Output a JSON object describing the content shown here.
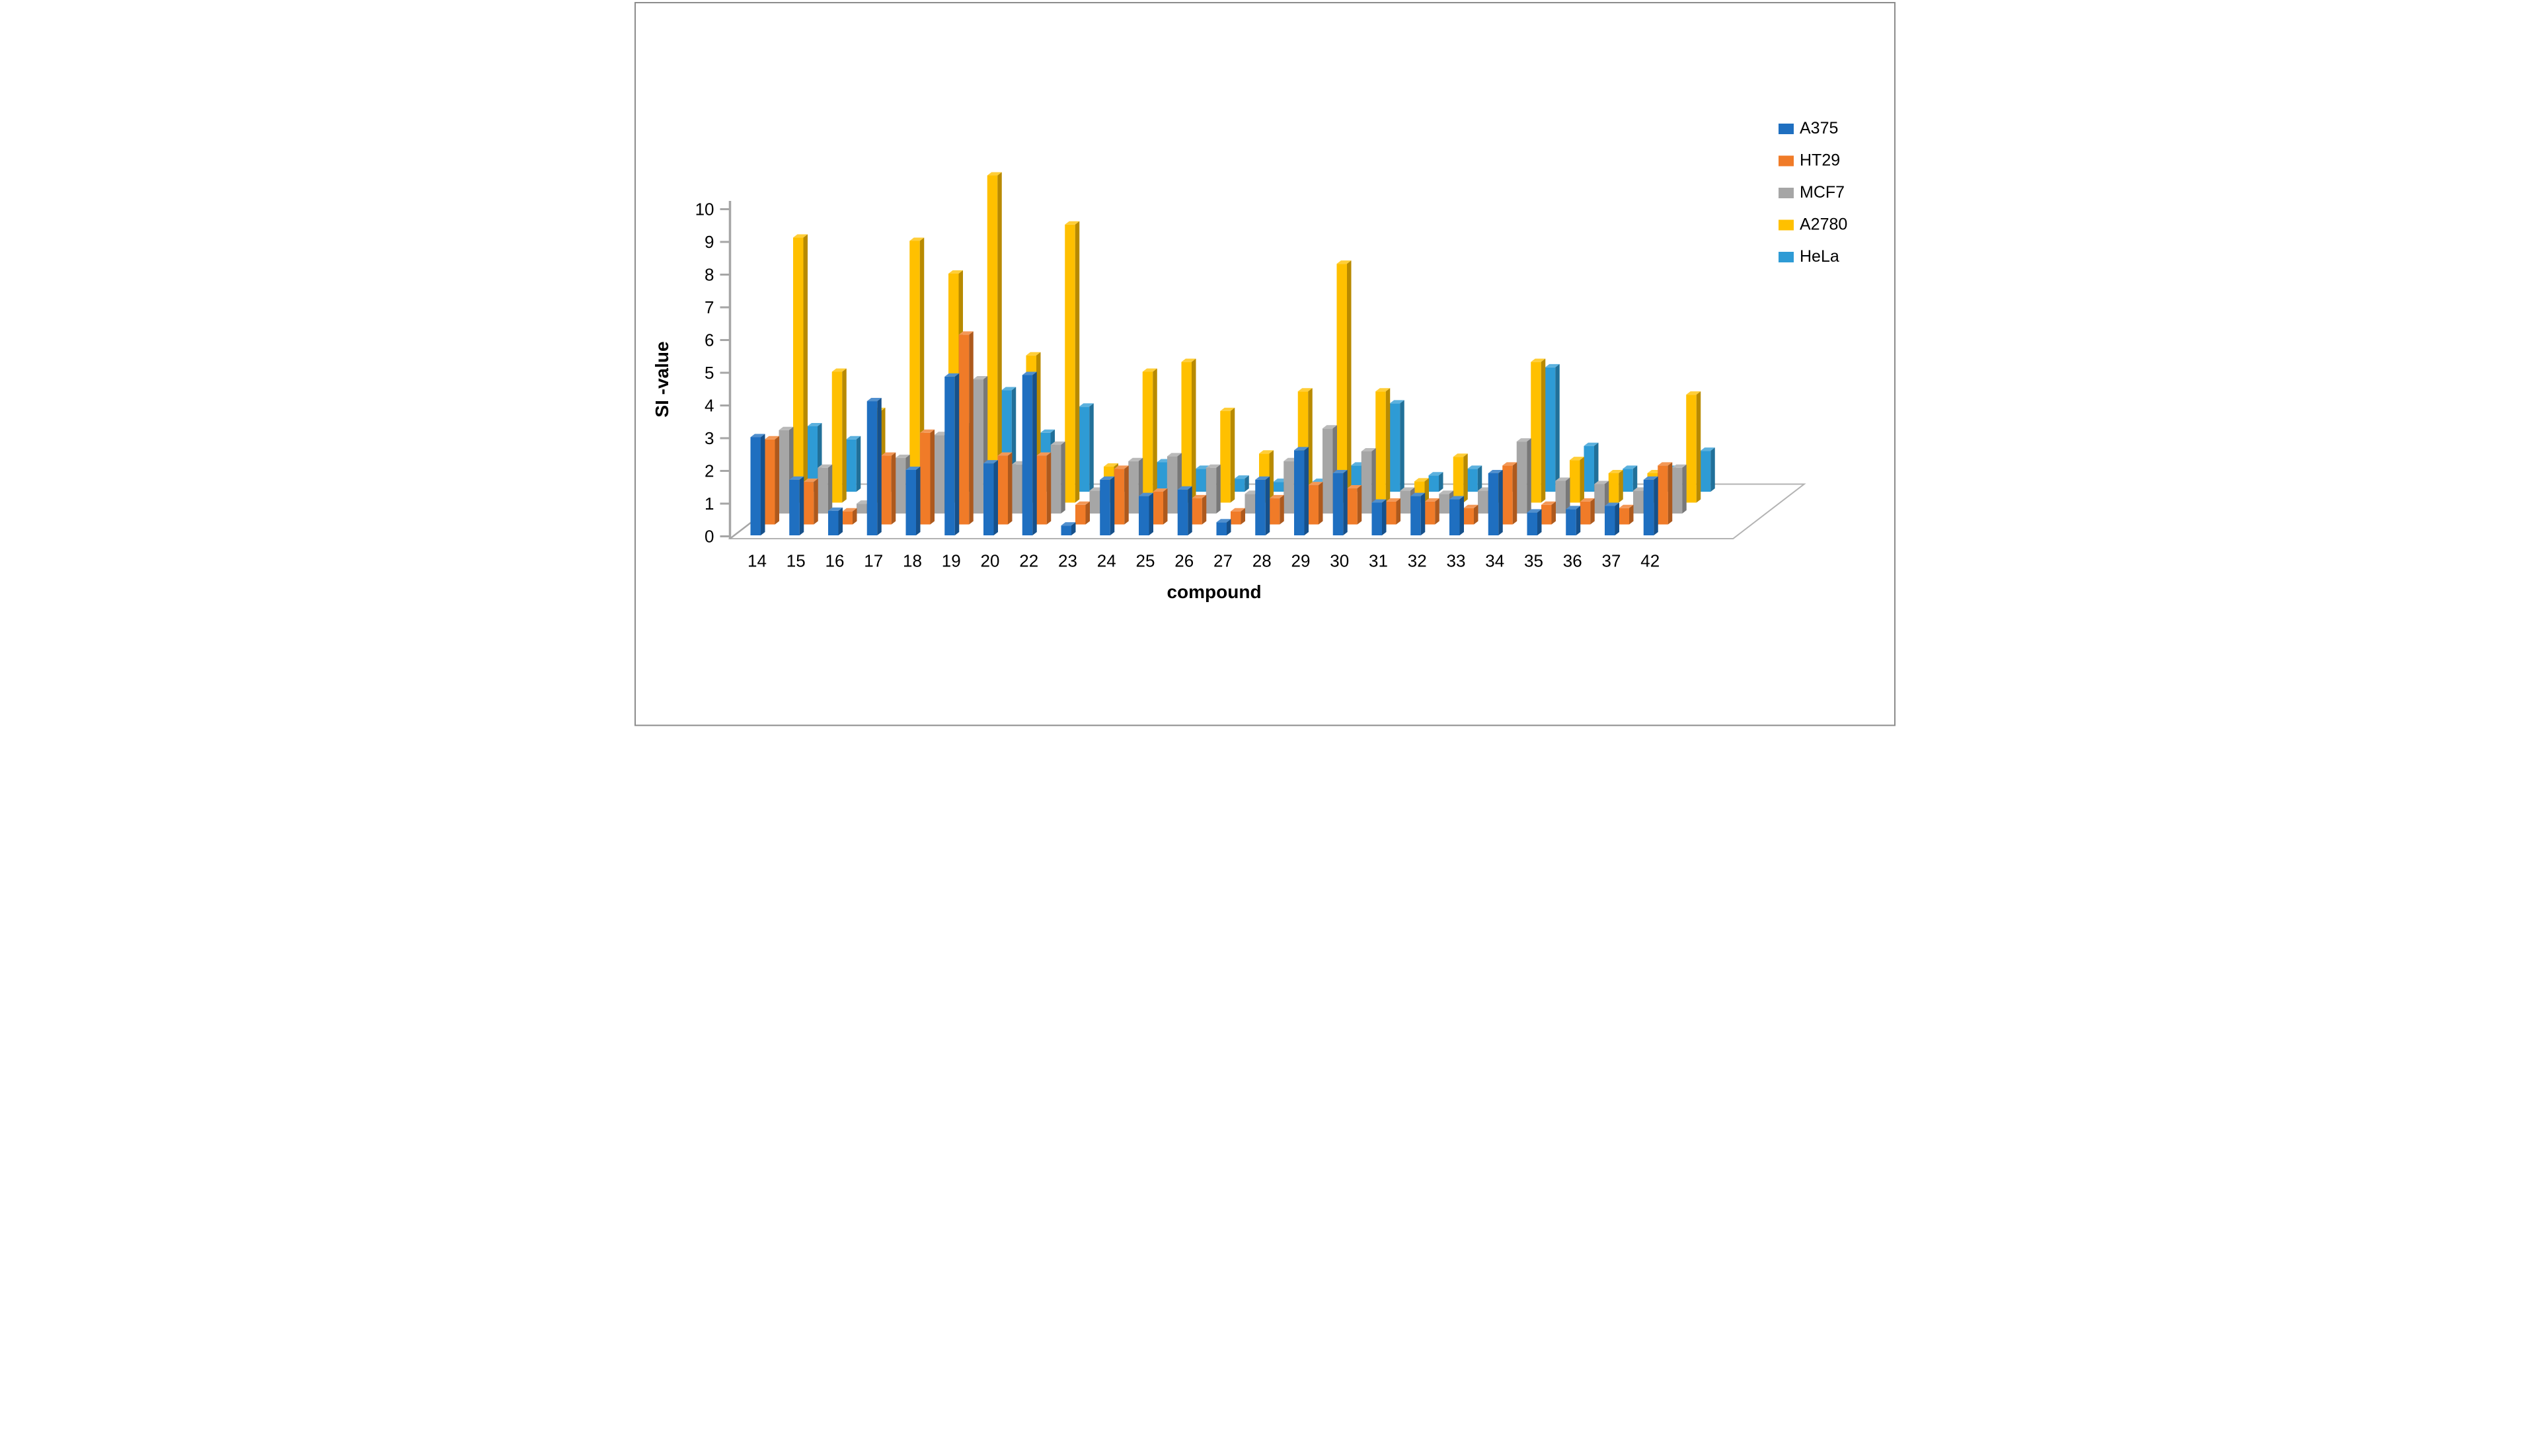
{
  "chart_data": {
    "type": "bar",
    "variant": "3d-column",
    "title": "",
    "xlabel": "compound",
    "ylabel": "SI -value",
    "ylim": [
      0,
      10
    ],
    "yticks": [
      "0",
      "1",
      "2",
      "3",
      "4",
      "5",
      "6",
      "7",
      "8",
      "9",
      "10"
    ],
    "grid": false,
    "legend_position": "right",
    "categories": [
      "14",
      "15",
      "16",
      "17",
      "18",
      "19",
      "20",
      "22",
      "23",
      "24",
      "25",
      "26",
      "27",
      "28",
      "29",
      "30",
      "31",
      "32",
      "33",
      "34",
      "35",
      "36",
      "37",
      "42"
    ],
    "series": [
      {
        "name": "A375",
        "color": "#1f6fc0",
        "values": [
          3.0,
          1.7,
          0.75,
          4.1,
          2.0,
          4.85,
          2.2,
          4.9,
          0.3,
          1.7,
          1.2,
          1.4,
          0.4,
          1.7,
          2.6,
          1.9,
          1.0,
          1.2,
          1.1,
          1.9,
          0.7,
          0.8,
          0.9,
          1.7
        ]
      },
      {
        "name": "HT29",
        "color": "#f07b28",
        "values": [
          2.6,
          1.3,
          0.4,
          2.1,
          2.8,
          5.8,
          2.1,
          2.1,
          0.6,
          1.7,
          1.0,
          0.8,
          0.4,
          0.8,
          1.2,
          1.1,
          0.7,
          0.7,
          0.5,
          1.8,
          0.6,
          0.7,
          0.5,
          1.8
        ]
      },
      {
        "name": "MCF7",
        "color": "#a6a6a6",
        "values": [
          2.55,
          1.4,
          0.3,
          1.7,
          2.4,
          4.1,
          1.5,
          2.1,
          0.7,
          1.6,
          1.75,
          1.4,
          0.6,
          1.6,
          2.6,
          1.9,
          0.7,
          0.6,
          0.7,
          2.2,
          1.0,
          0.9,
          0.7,
          1.4
        ]
      },
      {
        "name": "A2780",
        "color": "#ffc000",
        "values": [
          8.1,
          4.0,
          2.8,
          8.0,
          7.0,
          10.0,
          4.5,
          8.5,
          1.1,
          4.0,
          4.3,
          2.8,
          1.5,
          3.4,
          7.3,
          3.4,
          0.65,
          1.4,
          0.9,
          4.3,
          1.3,
          0.9,
          0.9,
          3.3
        ]
      },
      {
        "name": "HeLa",
        "color": "#2e9bd5",
        "values": [
          2.0,
          1.6,
          0.9,
          1.5,
          2.0,
          3.1,
          1.8,
          2.6,
          0.6,
          0.9,
          0.7,
          0.4,
          0.3,
          0.3,
          0.8,
          2.7,
          0.5,
          0.7,
          0.6,
          3.8,
          1.4,
          0.7,
          0.7,
          1.25
        ]
      }
    ]
  },
  "labels": {
    "ylabel": "SI -value",
    "xlabel": "compound"
  }
}
